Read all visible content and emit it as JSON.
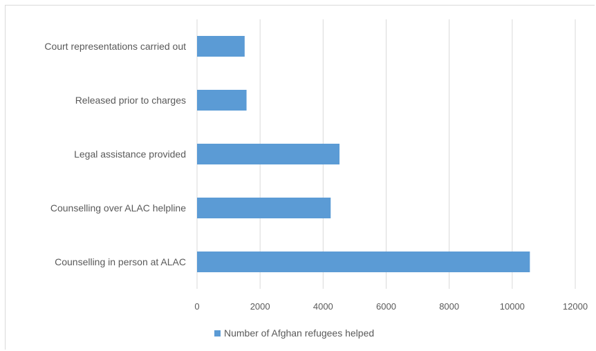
{
  "chart_data": {
    "type": "bar",
    "orientation": "horizontal",
    "categories": [
      "Counselling in person at ALAC",
      "Counselling over ALAC helpline",
      "Legal assistance provided",
      "Released prior to charges",
      "Court representations carried out"
    ],
    "series": [
      {
        "name": "Number of Afghan refugees helped",
        "values": [
          10560,
          4240,
          4520,
          1570,
          1510
        ]
      }
    ],
    "xlim": [
      0,
      12000
    ],
    "x_ticks": [
      "0",
      "2000",
      "4000",
      "6000",
      "8000",
      "10000",
      "12000"
    ],
    "grid": true,
    "legend_position": "bottom",
    "colors": {
      "bar": "#5b9bd5",
      "grid": "#d9d9d9",
      "text": "#595959"
    }
  }
}
